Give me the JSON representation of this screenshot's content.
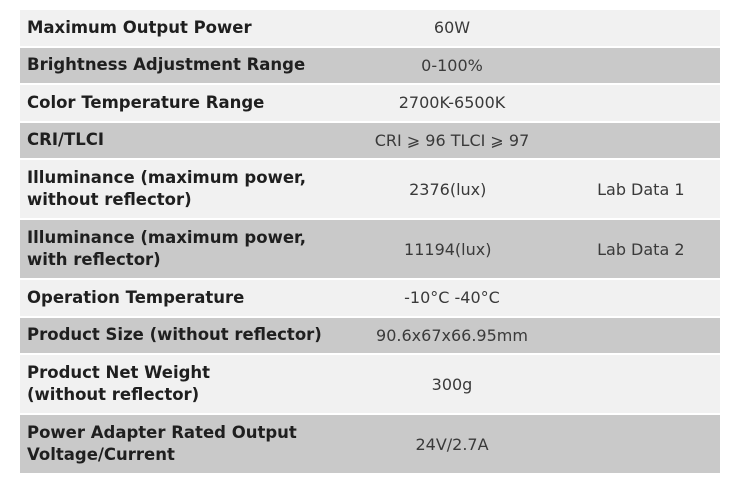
{
  "table": {
    "rows": [
      {
        "label": "Maximum Output Power",
        "value": "60W"
      },
      {
        "label": "Brightness Adjustment Range",
        "value": "0-100%"
      },
      {
        "label": "Color Temperature Range",
        "value": "2700K-6500K"
      },
      {
        "label": "CRI/TLCI",
        "value": "CRI ⩾ 96 TLCI ⩾ 97"
      },
      {
        "label": "Illuminance (maximum power,\nwithout reflector)",
        "value": "2376(lux)",
        "note": "Lab Data 1"
      },
      {
        "label": "Illuminance (maximum power,\nwith reflector)",
        "value": "11194(lux)",
        "note": "Lab Data 2"
      },
      {
        "label": "Operation Temperature",
        "value": "-10°C -40°C"
      },
      {
        "label": "Product Size (without reflector)",
        "value": "90.6x67x66.95mm"
      },
      {
        "label": "Product Net Weight\n(without reflector)",
        "value": "300g"
      },
      {
        "label": "Power Adapter Rated Output\nVoltage/Current",
        "value": "24V/2.7A"
      }
    ]
  }
}
